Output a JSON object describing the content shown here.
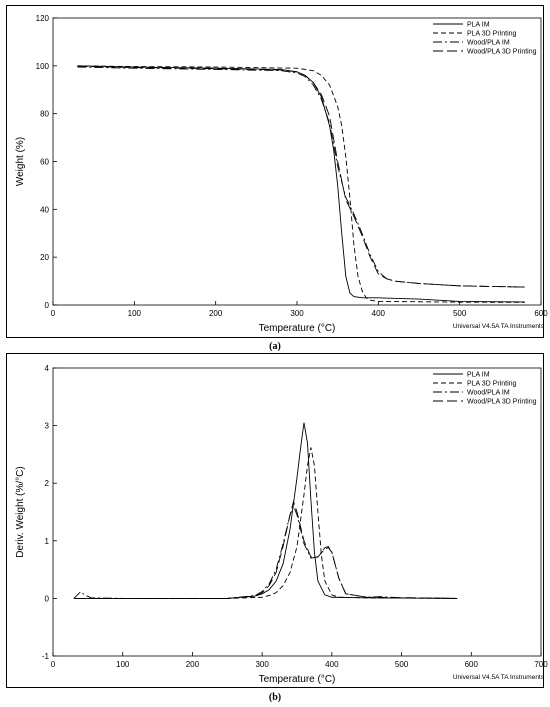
{
  "chart_data": [
    {
      "type": "line",
      "panel_label": "(a)",
      "title": "",
      "xlabel": "Temperature (°C)",
      "ylabel": "Weight (%)",
      "xlim": [
        0,
        600
      ],
      "ylim": [
        0,
        120
      ],
      "xticks": [
        0,
        100,
        200,
        300,
        400,
        500,
        600
      ],
      "yticks": [
        0,
        20,
        40,
        60,
        80,
        100,
        120
      ],
      "footer": "Universal V4.5A TA Instruments",
      "legend_position": "top-right",
      "series": [
        {
          "name": "PLA IM",
          "dash": "solid",
          "x": [
            30,
            100,
            200,
            280,
            300,
            310,
            320,
            330,
            340,
            345,
            350,
            355,
            360,
            365,
            370,
            380,
            400,
            450,
            500,
            580
          ],
          "y": [
            100,
            99.5,
            99,
            98.5,
            97.5,
            96,
            93,
            87,
            75,
            65,
            50,
            30,
            12,
            5,
            3.5,
            3,
            3,
            2.5,
            1.5,
            1.3
          ]
        },
        {
          "name": "PLA 3D Printing",
          "dash": "dashed",
          "x": [
            30,
            100,
            200,
            300,
            320,
            330,
            340,
            350,
            355,
            360,
            365,
            370,
            375,
            380,
            385,
            390,
            400,
            500,
            580
          ],
          "y": [
            100,
            99.7,
            99.5,
            99,
            98,
            96,
            92,
            83,
            75,
            62,
            45,
            25,
            12,
            6,
            3,
            2,
            1.5,
            1.2,
            1.1
          ]
        },
        {
          "name": "Wood/PLA IM",
          "dash": "dashdot",
          "x": [
            30,
            100,
            200,
            280,
            300,
            310,
            320,
            330,
            340,
            350,
            360,
            370,
            380,
            390,
            400,
            410,
            420,
            450,
            500,
            580
          ],
          "y": [
            99.5,
            99,
            98.5,
            98,
            97,
            95.5,
            92,
            86,
            76,
            58,
            45,
            38,
            30,
            21,
            14,
            11,
            10,
            9,
            8,
            7.5
          ]
        },
        {
          "name": "Wood/PLA 3D Printing",
          "dash": "longdash",
          "x": [
            30,
            100,
            200,
            280,
            300,
            310,
            320,
            330,
            340,
            350,
            360,
            370,
            380,
            390,
            400,
            410,
            420,
            450,
            500,
            580
          ],
          "y": [
            99.8,
            99.3,
            98.8,
            98.3,
            97.5,
            96,
            93,
            88,
            79,
            60,
            44,
            37,
            29,
            20,
            13,
            11,
            10,
            9,
            8,
            7.5
          ]
        }
      ]
    },
    {
      "type": "line",
      "panel_label": "(b)",
      "title": "",
      "xlabel": "Temperature (°C)",
      "ylabel": "Deriv. Weight (%/°C)",
      "xlim": [
        0,
        700
      ],
      "ylim": [
        -1,
        4
      ],
      "xticks": [
        0,
        100,
        200,
        300,
        400,
        500,
        600,
        700
      ],
      "yticks": [
        -1,
        0,
        1,
        2,
        3,
        4
      ],
      "footer": "Universal V4.5A TA Instruments",
      "legend_position": "top-right",
      "series": [
        {
          "name": "PLA IM",
          "dash": "solid",
          "x": [
            30,
            100,
            250,
            290,
            300,
            310,
            320,
            330,
            340,
            350,
            355,
            360,
            365,
            370,
            375,
            380,
            390,
            400,
            450,
            580
          ],
          "y": [
            0,
            0,
            0,
            0.04,
            0.08,
            0.15,
            0.3,
            0.6,
            1.2,
            2.1,
            2.6,
            3.05,
            2.7,
            1.7,
            0.8,
            0.3,
            0.06,
            0.02,
            0.01,
            0
          ]
        },
        {
          "name": "PLA 3D Printing",
          "dash": "dashed",
          "x": [
            30,
            100,
            250,
            300,
            310,
            320,
            330,
            340,
            350,
            360,
            365,
            370,
            375,
            380,
            385,
            390,
            400,
            410,
            450,
            580
          ],
          "y": [
            0,
            0,
            0,
            0.02,
            0.05,
            0.1,
            0.22,
            0.45,
            0.9,
            1.8,
            2.3,
            2.62,
            2.3,
            1.5,
            0.75,
            0.3,
            0.06,
            0.02,
            0.01,
            0
          ]
        },
        {
          "name": "Wood/PLA IM",
          "dash": "dashdot",
          "x": [
            30,
            40,
            45,
            55,
            100,
            250,
            290,
            300,
            310,
            320,
            330,
            340,
            345,
            350,
            360,
            370,
            380,
            390,
            395,
            400,
            410,
            420,
            450,
            470,
            500,
            580
          ],
          "y": [
            0,
            0.12,
            0.06,
            0.01,
            0,
            0,
            0.05,
            0.12,
            0.25,
            0.5,
            0.95,
            1.45,
            1.6,
            1.45,
            0.95,
            0.7,
            0.72,
            0.88,
            0.9,
            0.8,
            0.35,
            0.08,
            0.02,
            0.03,
            0.01,
            0
          ]
        },
        {
          "name": "Wood/PLA 3D Printing",
          "dash": "longdash",
          "x": [
            30,
            100,
            250,
            290,
            300,
            310,
            320,
            330,
            340,
            345,
            350,
            360,
            370,
            380,
            390,
            395,
            400,
            410,
            420,
            450,
            580
          ],
          "y": [
            0,
            0,
            0,
            0.04,
            0.1,
            0.22,
            0.45,
            0.9,
            1.45,
            1.68,
            1.5,
            1.0,
            0.72,
            0.72,
            0.86,
            0.88,
            0.8,
            0.35,
            0.08,
            0.02,
            0
          ]
        }
      ]
    }
  ]
}
